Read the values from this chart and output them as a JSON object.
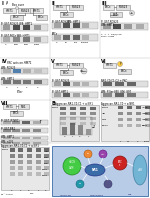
{
  "bg": "#f0f0f0",
  "white": "#ffffff",
  "black": "#111111",
  "gray_light": "#cccccc",
  "gray_mid": "#888888",
  "gray_dark": "#444444",
  "blue": "#3a6ca8",
  "blue_light": "#7bafd4",
  "blue_mid": "#4477aa",
  "green": "#3a9a3a",
  "green_bright": "#44cc44",
  "red": "#cc2222",
  "orange": "#dd8833",
  "purple": "#8844aa",
  "teal": "#2299aa",
  "panel_bg": "#e8e8e8",
  "blot_bg": "#d8d8d8",
  "blot_bg2": "#c8c8c8",
  "band_dark": "#222222",
  "band_med": "#666666",
  "band_light": "#aaaaaa"
}
